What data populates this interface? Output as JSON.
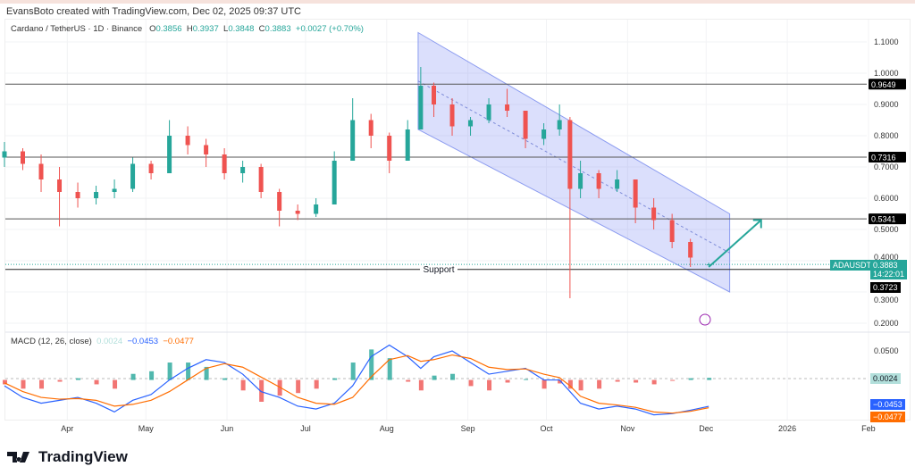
{
  "credit": "EvansBoto created with TradingView.com, Dec 02, 2025 09:37 UTC",
  "legend": {
    "symbol": "Cardano / TetherUS · 1D · Binance",
    "o_label": "O",
    "o": "0.3856",
    "h_label": "H",
    "h": "0.3937",
    "l_label": "L",
    "l": "0.3848",
    "c_label": "C",
    "c": "0.3883",
    "change": "+0.0027 (+0.70%)"
  },
  "macd_legend": {
    "title": "MACD (12, 26, close)",
    "hist": "0.0024",
    "macd": "−0.0453",
    "signal": "−0.0477"
  },
  "tags": {
    "symbol": "ADAUSDT",
    "price": "0.3883",
    "countdown": "14:22:01",
    "support_price": "0.3723",
    "hist": "0.0024",
    "macd": "−0.0453",
    "signal": "−0.0477"
  },
  "support_label": "Support",
  "brand": "TradingView",
  "colors": {
    "up": "#26a69a",
    "down": "#ef5350",
    "macd": "#2962ff",
    "signal": "#ff6d00",
    "channel": "#c5cdf7",
    "arrow": "#26a69a"
  },
  "chart_data": [
    {
      "type": "candlestick",
      "price_axis": {
        "ticks": [
          "1.1000",
          "1.0000",
          "0.9000",
          "0.8000",
          "0.7000",
          "0.6000",
          "0.5000",
          "0.4000",
          "0.3000",
          "0.2000"
        ],
        "range": [
          0.2,
          1.1
        ]
      },
      "x_axis": {
        "ticks": [
          "Apr",
          "May",
          "Jun",
          "Jul",
          "Aug",
          "Sep",
          "Oct",
          "Nov",
          "Dec",
          "2026",
          "Feb"
        ]
      },
      "levels": [
        0.9649,
        0.7316,
        0.5341,
        0.3723
      ],
      "level_labels": [
        "0.9649",
        "0.7316",
        "0.5341",
        "0.3723"
      ],
      "channel": {
        "start": "2025-08-13",
        "end": "2025-12-10",
        "upper": [
          1.13,
          0.55
        ],
        "lower": [
          0.82,
          0.3
        ]
      },
      "projection_arrow": {
        "from": [
          "2025-12-02",
          0.38
        ],
        "to": [
          "2025-12-22",
          0.53
        ]
      },
      "candles": [
        [
          "2025-03-08",
          0.73,
          0.78,
          0.7,
          0.75
        ],
        [
          "2025-03-15",
          0.75,
          0.76,
          0.69,
          0.71
        ],
        [
          "2025-03-22",
          0.71,
          0.74,
          0.62,
          0.66
        ],
        [
          "2025-03-29",
          0.66,
          0.7,
          0.51,
          0.62
        ],
        [
          "2025-04-05",
          0.62,
          0.65,
          0.57,
          0.6
        ],
        [
          "2025-04-12",
          0.6,
          0.64,
          0.58,
          0.62
        ],
        [
          "2025-04-19",
          0.62,
          0.66,
          0.6,
          0.63
        ],
        [
          "2025-04-26",
          0.63,
          0.73,
          0.62,
          0.71
        ],
        [
          "2025-05-03",
          0.71,
          0.72,
          0.66,
          0.68
        ],
        [
          "2025-05-10",
          0.68,
          0.85,
          0.68,
          0.8
        ],
        [
          "2025-05-17",
          0.8,
          0.83,
          0.74,
          0.77
        ],
        [
          "2025-05-24",
          0.77,
          0.79,
          0.7,
          0.74
        ],
        [
          "2025-05-31",
          0.74,
          0.76,
          0.66,
          0.68
        ],
        [
          "2025-06-07",
          0.68,
          0.72,
          0.65,
          0.7
        ],
        [
          "2025-06-14",
          0.7,
          0.71,
          0.6,
          0.62
        ],
        [
          "2025-06-21",
          0.62,
          0.63,
          0.51,
          0.56
        ],
        [
          "2025-06-28",
          0.56,
          0.58,
          0.53,
          0.55
        ],
        [
          "2025-07-05",
          0.55,
          0.6,
          0.54,
          0.58
        ],
        [
          "2025-07-12",
          0.58,
          0.75,
          0.58,
          0.72
        ],
        [
          "2025-07-19",
          0.72,
          0.92,
          0.72,
          0.85
        ],
        [
          "2025-07-26",
          0.85,
          0.87,
          0.76,
          0.8
        ],
        [
          "2025-08-02",
          0.8,
          0.81,
          0.68,
          0.72
        ],
        [
          "2025-08-09",
          0.72,
          0.85,
          0.72,
          0.82
        ],
        [
          "2025-08-14",
          0.82,
          1.02,
          0.82,
          0.96
        ],
        [
          "2025-08-19",
          0.96,
          0.97,
          0.86,
          0.9
        ],
        [
          "2025-08-26",
          0.9,
          0.92,
          0.8,
          0.83
        ],
        [
          "2025-09-02",
          0.83,
          0.86,
          0.8,
          0.85
        ],
        [
          "2025-09-09",
          0.85,
          0.92,
          0.84,
          0.9
        ],
        [
          "2025-09-16",
          0.9,
          0.95,
          0.86,
          0.88
        ],
        [
          "2025-09-23",
          0.88,
          0.88,
          0.76,
          0.79
        ],
        [
          "2025-09-30",
          0.79,
          0.84,
          0.77,
          0.82
        ],
        [
          "2025-10-06",
          0.82,
          0.9,
          0.8,
          0.85
        ],
        [
          "2025-10-10",
          0.85,
          0.86,
          0.28,
          0.63
        ],
        [
          "2025-10-14",
          0.63,
          0.72,
          0.6,
          0.68
        ],
        [
          "2025-10-21",
          0.68,
          0.69,
          0.6,
          0.63
        ],
        [
          "2025-10-28",
          0.63,
          0.69,
          0.62,
          0.66
        ],
        [
          "2025-11-04",
          0.66,
          0.66,
          0.52,
          0.57
        ],
        [
          "2025-11-11",
          0.57,
          0.6,
          0.5,
          0.53
        ],
        [
          "2025-11-18",
          0.53,
          0.55,
          0.44,
          0.46
        ],
        [
          "2025-11-25",
          0.46,
          0.47,
          0.38,
          0.41
        ],
        [
          "2025-12-02",
          0.3856,
          0.3937,
          0.3848,
          0.3883
        ]
      ]
    },
    {
      "type": "macd",
      "axis_ticks": [
        "0.0500"
      ],
      "macd": [
        -0.01,
        -0.03,
        -0.04,
        -0.035,
        -0.03,
        -0.04,
        -0.055,
        -0.035,
        -0.025,
        0.0,
        0.02,
        0.035,
        0.03,
        0.01,
        -0.02,
        -0.03,
        -0.045,
        -0.05,
        -0.04,
        -0.01,
        0.04,
        0.06,
        0.04,
        0.02,
        0.04,
        0.05,
        0.03,
        0.01,
        0.015,
        0.02,
        0.0,
        0.0,
        -0.02,
        -0.04,
        -0.05,
        -0.045,
        -0.05,
        -0.06,
        -0.058,
        -0.052,
        -0.0453
      ],
      "signal": [
        -0.005,
        -0.02,
        -0.03,
        -0.033,
        -0.032,
        -0.035,
        -0.045,
        -0.042,
        -0.035,
        -0.02,
        0.0,
        0.02,
        0.028,
        0.022,
        0.005,
        -0.012,
        -0.03,
        -0.04,
        -0.042,
        -0.03,
        0.005,
        0.035,
        0.042,
        0.032,
        0.035,
        0.043,
        0.037,
        0.022,
        0.018,
        0.019,
        0.01,
        0.004,
        -0.01,
        -0.028,
        -0.04,
        -0.043,
        -0.047,
        -0.055,
        -0.057,
        -0.054,
        -0.0477
      ]
    }
  ]
}
